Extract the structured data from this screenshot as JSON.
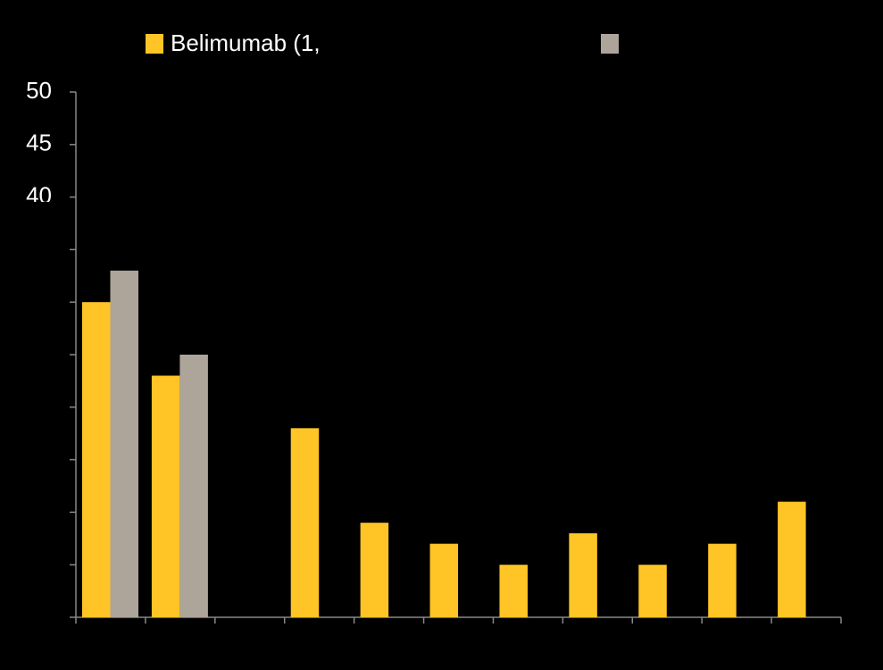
{
  "chart_data": {
    "type": "bar",
    "categories": [
      null,
      null,
      null,
      null,
      null,
      null,
      null,
      null,
      null,
      null,
      null
    ],
    "series": [
      {
        "name": "Belimumab (1,",
        "color": "#ffc425",
        "values": [
          30,
          23,
          null,
          18,
          9,
          7,
          5,
          8,
          5,
          7,
          11
        ]
      },
      {
        "name": null,
        "color": "#ada49a",
        "values": [
          33,
          25,
          null,
          null,
          null,
          null,
          null,
          null,
          null,
          null,
          null
        ]
      }
    ],
    "ylim": [
      0,
      50
    ],
    "yticks": [
      50,
      45,
      40
    ],
    "yticks_minor": [
      0,
      5,
      10,
      15,
      20,
      25,
      30,
      35
    ]
  }
}
